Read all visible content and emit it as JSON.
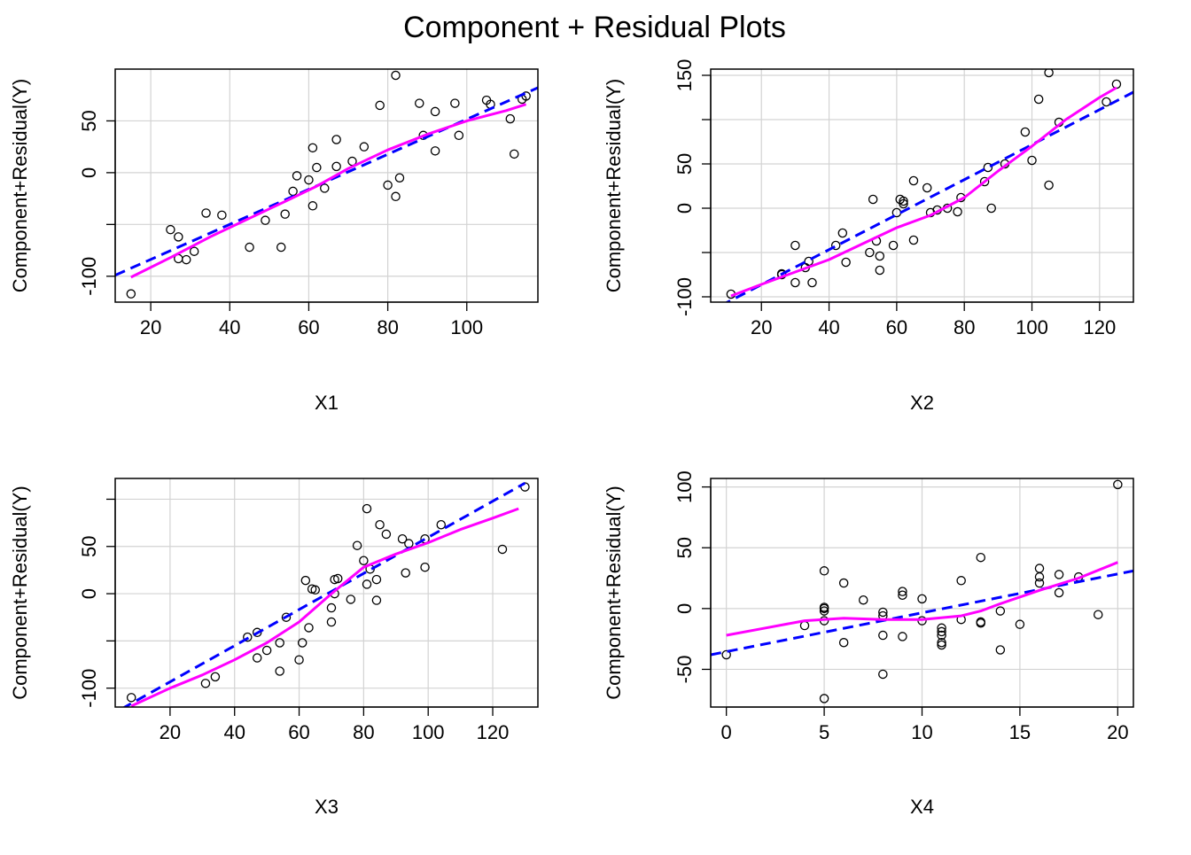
{
  "title": "Component + Residual Plots",
  "chart_data": [
    {
      "type": "scatter",
      "xlabel": "X1",
      "ylabel": "Component+Residual(Y)",
      "xlim": [
        11,
        118
      ],
      "ylim": [
        -125,
        100
      ],
      "xticks": [
        20,
        40,
        60,
        80,
        100
      ],
      "yticks": [
        -100,
        -50,
        0,
        50
      ],
      "ytick_labels": [
        "-100",
        "",
        "0",
        "50"
      ],
      "grid": true,
      "points": [
        [
          15,
          -117
        ],
        [
          25,
          -55
        ],
        [
          27,
          -62
        ],
        [
          27,
          -83
        ],
        [
          29,
          -84
        ],
        [
          31,
          -76
        ],
        [
          34,
          -39
        ],
        [
          38,
          -41
        ],
        [
          45,
          -72
        ],
        [
          49,
          -46
        ],
        [
          53,
          -72
        ],
        [
          54,
          -40
        ],
        [
          56,
          -18
        ],
        [
          57,
          -3
        ],
        [
          60,
          -7
        ],
        [
          61,
          -32
        ],
        [
          61,
          24
        ],
        [
          62,
          5
        ],
        [
          64,
          -15
        ],
        [
          67,
          32
        ],
        [
          67,
          6
        ],
        [
          71,
          11
        ],
        [
          74,
          25
        ],
        [
          78,
          65
        ],
        [
          80,
          -12
        ],
        [
          82,
          -23
        ],
        [
          82,
          94
        ],
        [
          83,
          -5
        ],
        [
          88,
          67
        ],
        [
          89,
          36
        ],
        [
          92,
          21
        ],
        [
          92,
          59
        ],
        [
          97,
          67
        ],
        [
          98,
          36
        ],
        [
          105,
          70
        ],
        [
          106,
          66
        ],
        [
          111,
          52
        ],
        [
          112,
          18
        ],
        [
          114,
          71
        ],
        [
          115,
          74
        ]
      ],
      "series": [
        {
          "kind": "linear-fit",
          "color": "#0000ff",
          "dash": true,
          "points": [
            [
              11,
              -99
            ],
            [
              118,
              82
            ]
          ]
        },
        {
          "kind": "smooth",
          "color": "#ff00ff",
          "dash": false,
          "points": [
            [
              15,
              -101
            ],
            [
              25,
              -82
            ],
            [
              35,
              -62
            ],
            [
              45,
              -44
            ],
            [
              55,
              -26
            ],
            [
              62,
              -13
            ],
            [
              70,
              4
            ],
            [
              80,
              22
            ],
            [
              90,
              37
            ],
            [
              100,
              50
            ],
            [
              110,
              60
            ],
            [
              115,
              66
            ]
          ]
        }
      ]
    },
    {
      "type": "scatter",
      "xlabel": "X2",
      "ylabel": "Component+Residual(Y)",
      "xlim": [
        5,
        130
      ],
      "ylim": [
        -106,
        157
      ],
      "xticks": [
        20,
        40,
        60,
        80,
        100,
        120
      ],
      "yticks": [
        -100,
        -50,
        0,
        50,
        100,
        150
      ],
      "ytick_labels": [
        "-100",
        "",
        "0",
        "50",
        "",
        "150"
      ],
      "grid": true,
      "points": [
        [
          11,
          -97
        ],
        [
          26,
          -75
        ],
        [
          26,
          -74
        ],
        [
          30,
          -42
        ],
        [
          30,
          -84
        ],
        [
          33,
          -67
        ],
        [
          34,
          -60
        ],
        [
          35,
          -84
        ],
        [
          42,
          -42
        ],
        [
          44,
          -28
        ],
        [
          45,
          -61
        ],
        [
          52,
          -50
        ],
        [
          53,
          10
        ],
        [
          54,
          -37
        ],
        [
          55,
          -54
        ],
        [
          55,
          -70
        ],
        [
          59,
          -42
        ],
        [
          60,
          -5
        ],
        [
          61,
          10
        ],
        [
          62,
          5
        ],
        [
          62,
          8
        ],
        [
          65,
          -36
        ],
        [
          65,
          31
        ],
        [
          69,
          23
        ],
        [
          70,
          -5
        ],
        [
          72,
          -2
        ],
        [
          75,
          0
        ],
        [
          78,
          -4
        ],
        [
          79,
          12
        ],
        [
          86,
          30
        ],
        [
          87,
          46
        ],
        [
          88,
          0
        ],
        [
          92,
          50
        ],
        [
          98,
          86
        ],
        [
          100,
          54
        ],
        [
          102,
          123
        ],
        [
          105,
          26
        ],
        [
          105,
          153
        ],
        [
          108,
          97
        ],
        [
          122,
          120
        ],
        [
          125,
          140
        ]
      ],
      "series": [
        {
          "kind": "linear-fit",
          "color": "#0000ff",
          "dash": true,
          "points": [
            [
              8,
              -110
            ],
            [
              130,
              131
            ]
          ]
        },
        {
          "kind": "smooth",
          "color": "#ff00ff",
          "dash": false,
          "points": [
            [
              11,
              -99
            ],
            [
              20,
              -86
            ],
            [
              30,
              -72
            ],
            [
              40,
              -58
            ],
            [
              50,
              -40
            ],
            [
              60,
              -22
            ],
            [
              70,
              -8
            ],
            [
              80,
              12
            ],
            [
              90,
              42
            ],
            [
              100,
              70
            ],
            [
              110,
              100
            ],
            [
              120,
              125
            ],
            [
              125,
              136
            ]
          ]
        }
      ]
    },
    {
      "type": "scatter",
      "xlabel": "X3",
      "ylabel": "Component+Residual(Y)",
      "xlim": [
        3,
        134
      ],
      "ylim": [
        -120,
        122
      ],
      "xticks": [
        20,
        40,
        60,
        80,
        100,
        120
      ],
      "yticks": [
        -100,
        -50,
        0,
        50,
        100
      ],
      "ytick_labels": [
        "-100",
        "",
        "0",
        "50",
        ""
      ],
      "grid": true,
      "points": [
        [
          8,
          -110
        ],
        [
          31,
          -95
        ],
        [
          34,
          -88
        ],
        [
          44,
          -46
        ],
        [
          47,
          -41
        ],
        [
          47,
          -68
        ],
        [
          50,
          -60
        ],
        [
          54,
          -82
        ],
        [
          54,
          -52
        ],
        [
          56,
          -25
        ],
        [
          60,
          -70
        ],
        [
          61,
          -52
        ],
        [
          62,
          14
        ],
        [
          63,
          -36
        ],
        [
          64,
          5
        ],
        [
          65,
          4
        ],
        [
          70,
          -30
        ],
        [
          70,
          -15
        ],
        [
          71,
          0
        ],
        [
          71,
          15
        ],
        [
          72,
          16
        ],
        [
          76,
          -6
        ],
        [
          78,
          51
        ],
        [
          80,
          35
        ],
        [
          81,
          90
        ],
        [
          81,
          10
        ],
        [
          82,
          26
        ],
        [
          84,
          -7
        ],
        [
          84,
          15
        ],
        [
          85,
          73
        ],
        [
          87,
          63
        ],
        [
          92,
          58
        ],
        [
          93,
          22
        ],
        [
          94,
          53
        ],
        [
          99,
          58
        ],
        [
          99,
          28
        ],
        [
          104,
          73
        ],
        [
          123,
          47
        ],
        [
          130,
          113
        ]
      ],
      "series": [
        {
          "kind": "linear-fit",
          "color": "#0000ff",
          "dash": true,
          "points": [
            [
              5,
              -122
            ],
            [
              130,
              117
            ]
          ]
        },
        {
          "kind": "smooth",
          "color": "#ff00ff",
          "dash": false,
          "points": [
            [
              8,
              -119
            ],
            [
              20,
              -100
            ],
            [
              30,
              -86
            ],
            [
              40,
              -70
            ],
            [
              50,
              -52
            ],
            [
              60,
              -30
            ],
            [
              70,
              0
            ],
            [
              80,
              28
            ],
            [
              90,
              42
            ],
            [
              100,
              54
            ],
            [
              110,
              68
            ],
            [
              120,
              80
            ],
            [
              128,
              90
            ]
          ]
        }
      ]
    },
    {
      "type": "scatter",
      "xlabel": "X4",
      "ylabel": "Component+Residual(Y)",
      "xlim": [
        -0.8,
        20.8
      ],
      "ylim": [
        -81,
        107
      ],
      "xticks": [
        0,
        5,
        10,
        15,
        20
      ],
      "yticks": [
        -50,
        0,
        50,
        100
      ],
      "ytick_labels": [
        "-50",
        "0",
        "50",
        "100"
      ],
      "grid": true,
      "points": [
        [
          0,
          -38
        ],
        [
          4,
          -14
        ],
        [
          5,
          31
        ],
        [
          5,
          1
        ],
        [
          5,
          0
        ],
        [
          5,
          -2
        ],
        [
          5,
          -10
        ],
        [
          5,
          -74
        ],
        [
          6,
          -28
        ],
        [
          6,
          21
        ],
        [
          7,
          7
        ],
        [
          8,
          -3
        ],
        [
          8,
          -6
        ],
        [
          8,
          -22
        ],
        [
          8,
          -54
        ],
        [
          9,
          14
        ],
        [
          9,
          11
        ],
        [
          9,
          -23
        ],
        [
          10,
          8
        ],
        [
          10,
          -10
        ],
        [
          11,
          -16
        ],
        [
          11,
          -19
        ],
        [
          11,
          -22
        ],
        [
          11,
          -28
        ],
        [
          11,
          -30
        ],
        [
          12,
          -9
        ],
        [
          12,
          23
        ],
        [
          13,
          42
        ],
        [
          13,
          -11
        ],
        [
          13,
          -12
        ],
        [
          14,
          -2
        ],
        [
          14,
          -34
        ],
        [
          15,
          -13
        ],
        [
          16,
          33
        ],
        [
          16,
          26
        ],
        [
          16,
          21
        ],
        [
          17,
          28
        ],
        [
          17,
          13
        ],
        [
          18,
          26
        ],
        [
          19,
          -5
        ],
        [
          20,
          102
        ]
      ],
      "series": [
        {
          "kind": "linear-fit",
          "color": "#0000ff",
          "dash": true,
          "points": [
            [
              -0.8,
              -38
            ],
            [
              20.8,
              31
            ]
          ]
        },
        {
          "kind": "smooth",
          "color": "#ff00ff",
          "dash": false,
          "points": [
            [
              0,
              -22
            ],
            [
              2,
              -16
            ],
            [
              4,
              -10
            ],
            [
              6,
              -8
            ],
            [
              8,
              -9
            ],
            [
              10,
              -9
            ],
            [
              12,
              -6
            ],
            [
              13,
              -2
            ],
            [
              14,
              4
            ],
            [
              16,
              15
            ],
            [
              18,
              25
            ],
            [
              20,
              38
            ]
          ]
        }
      ]
    }
  ]
}
